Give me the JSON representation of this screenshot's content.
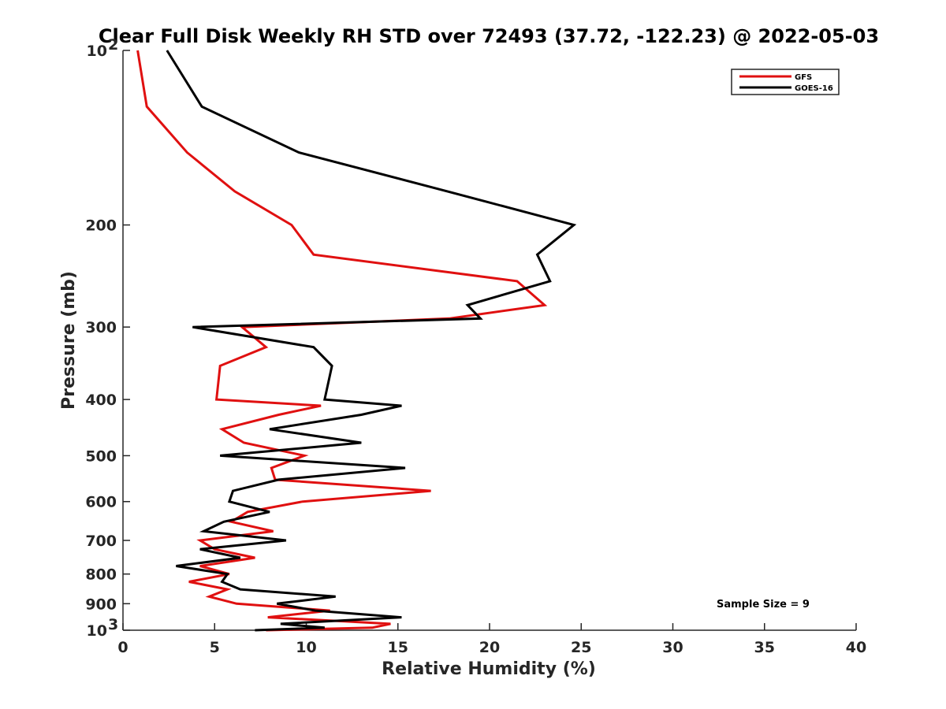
{
  "chart_data": {
    "type": "line",
    "title": "Clear Full Disk Weekly RH STD over 72493 (37.72, -122.23) @ 2022-05-03",
    "xlabel": "Relative Humidity (%)",
    "ylabel": "Pressure (mb)",
    "xlim": [
      0,
      40
    ],
    "ylim": [
      100,
      1000
    ],
    "y_scale": "log",
    "y_reversed": true,
    "x_ticks": [
      0,
      5,
      10,
      15,
      20,
      25,
      30,
      35,
      40
    ],
    "x_tick_labels": [
      "0",
      "5",
      "10",
      "15",
      "20",
      "25",
      "30",
      "35",
      "40"
    ],
    "y_ticks": [
      100,
      200,
      300,
      400,
      500,
      600,
      700,
      800,
      900,
      1000
    ],
    "y_tick_labels": [
      {
        "base": "10",
        "exp": "2"
      },
      {
        "base": "200",
        "exp": ""
      },
      {
        "base": "300",
        "exp": ""
      },
      {
        "base": "400",
        "exp": ""
      },
      {
        "base": "500",
        "exp": ""
      },
      {
        "base": "600",
        "exp": ""
      },
      {
        "base": "700",
        "exp": ""
      },
      {
        "base": "800",
        "exp": ""
      },
      {
        "base": "900",
        "exp": ""
      },
      {
        "base": "10",
        "exp": "3"
      }
    ],
    "grid": false,
    "legend_position": "top-right",
    "annotation": "Sample Size = 9",
    "series": [
      {
        "name": "GFS",
        "color": "#e01010",
        "points": [
          [
            0.8,
            100
          ],
          [
            1.3,
            125
          ],
          [
            3.5,
            150
          ],
          [
            6.1,
            175
          ],
          [
            9.2,
            200
          ],
          [
            10.4,
            225
          ],
          [
            21.5,
            250
          ],
          [
            23.0,
            275
          ],
          [
            17.8,
            290
          ],
          [
            6.5,
            300
          ],
          [
            7.8,
            325
          ],
          [
            5.3,
            350
          ],
          [
            5.1,
            400
          ],
          [
            10.8,
            410
          ],
          [
            8.5,
            425
          ],
          [
            5.4,
            450
          ],
          [
            6.6,
            475
          ],
          [
            9.9,
            500
          ],
          [
            8.1,
            525
          ],
          [
            8.3,
            550
          ],
          [
            16.8,
            575
          ],
          [
            9.8,
            600
          ],
          [
            6.8,
            625
          ],
          [
            5.9,
            650
          ],
          [
            8.2,
            675
          ],
          [
            4.2,
            700
          ],
          [
            5.0,
            725
          ],
          [
            7.2,
            750
          ],
          [
            4.2,
            775
          ],
          [
            5.8,
            800
          ],
          [
            3.6,
            825
          ],
          [
            5.7,
            850
          ],
          [
            4.7,
            875
          ],
          [
            6.2,
            900
          ],
          [
            11.3,
            925
          ],
          [
            7.9,
            950
          ],
          [
            14.6,
            975
          ],
          [
            13.6,
            990
          ],
          [
            7.8,
            1000
          ]
        ]
      },
      {
        "name": "GOES-16",
        "color": "#000000",
        "points": [
          [
            2.4,
            100
          ],
          [
            4.3,
            125
          ],
          [
            9.6,
            150
          ],
          [
            17.7,
            175
          ],
          [
            24.6,
            200
          ],
          [
            22.6,
            225
          ],
          [
            23.3,
            250
          ],
          [
            18.8,
            275
          ],
          [
            19.5,
            290
          ],
          [
            3.8,
            300
          ],
          [
            10.4,
            325
          ],
          [
            11.4,
            350
          ],
          [
            11.0,
            400
          ],
          [
            15.2,
            410
          ],
          [
            13.0,
            425
          ],
          [
            8.0,
            450
          ],
          [
            13.0,
            475
          ],
          [
            5.3,
            500
          ],
          [
            15.4,
            525
          ],
          [
            8.5,
            550
          ],
          [
            6.0,
            575
          ],
          [
            5.8,
            600
          ],
          [
            8.0,
            625
          ],
          [
            5.5,
            650
          ],
          [
            4.4,
            675
          ],
          [
            8.9,
            700
          ],
          [
            4.2,
            725
          ],
          [
            6.4,
            750
          ],
          [
            2.9,
            775
          ],
          [
            5.7,
            800
          ],
          [
            5.4,
            825
          ],
          [
            6.4,
            850
          ],
          [
            11.6,
            875
          ],
          [
            8.4,
            900
          ],
          [
            10.5,
            925
          ],
          [
            15.2,
            950
          ],
          [
            8.6,
            975
          ],
          [
            11.0,
            990
          ],
          [
            7.2,
            1000
          ]
        ]
      }
    ]
  }
}
